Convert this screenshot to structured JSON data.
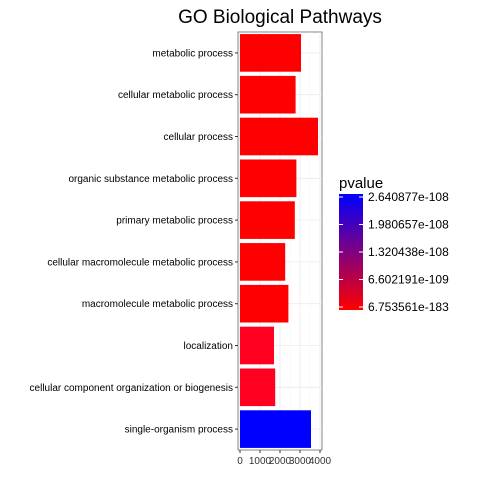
{
  "chart_data": {
    "type": "bar",
    "orientation": "horizontal",
    "title": "GO Biological Pathways",
    "xlabel": "",
    "ylabel": "",
    "xlim": [
      0,
      4000
    ],
    "x_ticks": [
      0,
      1000,
      2000,
      3000,
      4000
    ],
    "x_tick_labels": [
      "0",
      "1000",
      "2000",
      "3000",
      "4000"
    ],
    "grid": true,
    "categories": [
      "metabolic process",
      "cellular metabolic process",
      "cellular process",
      "organic substance metabolic process",
      "primary metabolic process",
      "cellular macromolecule metabolic process",
      "macromolecule metabolic process",
      "localization",
      "cellular component organization or biogenesis",
      "single-organism process"
    ],
    "values": [
      3050,
      2780,
      3900,
      2820,
      2740,
      2260,
      2420,
      1700,
      1760,
      3550
    ],
    "colors": [
      "#ff0000",
      "#ff0000",
      "#ff0000",
      "#ff0000",
      "#ff0000",
      "#ff0000",
      "#ff0000",
      "#ff0020",
      "#ff0020",
      "#0000ff"
    ],
    "legend": {
      "title": "pvalue",
      "placement": "right",
      "type": "gradient",
      "color_high": "#0000ff",
      "color_low": "#ff0000",
      "labels": [
        "2.640877e-108",
        "1.980657e-108",
        "1.320438e-108",
        "6.602191e-109",
        "6.753561e-183"
      ]
    }
  }
}
